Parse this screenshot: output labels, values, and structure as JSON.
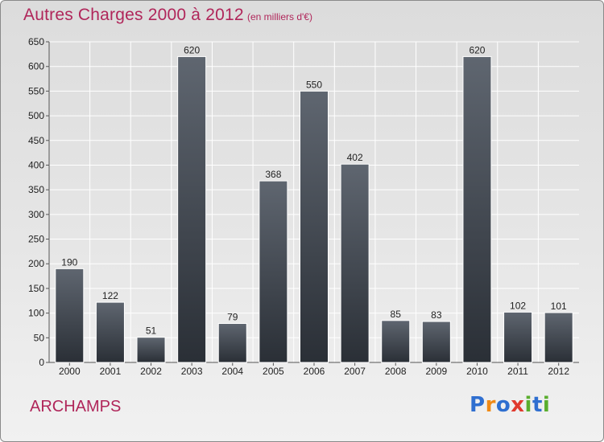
{
  "header": {
    "title": "Autres Charges 2000 à 2012",
    "unit": "(en milliers d'€)"
  },
  "footer": {
    "place": "ARCHAMPS",
    "logo_letters": [
      "P",
      "r",
      "o",
      "x",
      "i",
      "t",
      "i"
    ]
  },
  "colors": {
    "accent": "#b0265a",
    "bar_top": "#5f6670",
    "bar_bottom": "#2a2f36"
  },
  "chart_data": {
    "type": "bar",
    "categories": [
      "2000",
      "2001",
      "2002",
      "2003",
      "2004",
      "2005",
      "2006",
      "2007",
      "2008",
      "2009",
      "2010",
      "2011",
      "2012"
    ],
    "values": [
      190,
      122,
      51,
      620,
      79,
      368,
      550,
      402,
      85,
      83,
      620,
      102,
      101
    ],
    "data_labels": [
      "190",
      "122",
      "51",
      "620",
      "79",
      "368",
      "550",
      "402",
      "85",
      "83",
      "620",
      "102",
      "101"
    ],
    "ylim": [
      0,
      650
    ],
    "yticks": [
      0,
      50,
      100,
      150,
      200,
      250,
      300,
      350,
      400,
      450,
      500,
      550,
      600,
      650
    ],
    "grid": true,
    "legend": "none"
  }
}
